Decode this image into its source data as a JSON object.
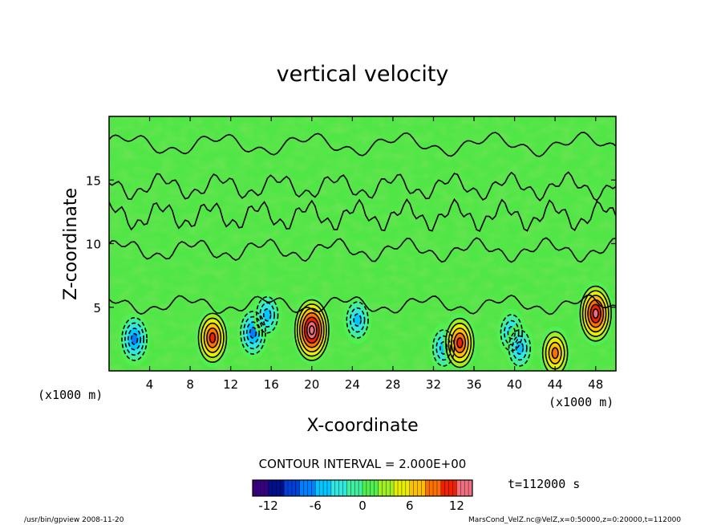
{
  "chart_data": {
    "type": "heatmap",
    "title": "vertical velocity",
    "xlabel": "X-coordinate",
    "ylabel": "Z-coordinate",
    "x_unit_label": "(x1000 m)",
    "x_unit_label_right": "(x1000 m)",
    "xlim": [
      0,
      50
    ],
    "ylim": [
      0,
      20
    ],
    "x_ticks": [
      "4",
      "8",
      "12",
      "16",
      "20",
      "24",
      "28",
      "32",
      "36",
      "40",
      "44",
      "48"
    ],
    "y_ticks": [
      "5",
      "10",
      "15"
    ],
    "contour_interval_text": "CONTOUR INTERVAL = 2.000E+00",
    "time_text": "t=112000 s",
    "colorbar": {
      "min": -14,
      "max": 14,
      "tick_labels": [
        "-12",
        "-6",
        "0",
        "6",
        "12"
      ],
      "colors": [
        "#3a0080",
        "#00108c",
        "#0040d8",
        "#0080ff",
        "#00c8ff",
        "#30e8e0",
        "#40f0a0",
        "#50f050",
        "#a0f020",
        "#e8f000",
        "#ffc000",
        "#ff7000",
        "#f02000",
        "#f07080"
      ]
    },
    "background_value": 0,
    "cells": [
      {
        "x": 2.5,
        "z": 2.5,
        "value": -8
      },
      {
        "x": 10.2,
        "z": 2.6,
        "value": 10
      },
      {
        "x": 14.2,
        "z": 3.0,
        "value": -8
      },
      {
        "x": 15.6,
        "z": 4.4,
        "value": -6
      },
      {
        "x": 20.0,
        "z": 3.2,
        "value": 14
      },
      {
        "x": 24.5,
        "z": 4.0,
        "value": -6
      },
      {
        "x": 33.0,
        "z": 1.8,
        "value": -6
      },
      {
        "x": 34.6,
        "z": 2.2,
        "value": 10
      },
      {
        "x": 39.7,
        "z": 3.0,
        "value": -6
      },
      {
        "x": 40.5,
        "z": 1.8,
        "value": -6
      },
      {
        "x": 44.0,
        "z": 1.4,
        "value": 8
      },
      {
        "x": 48.0,
        "z": 4.5,
        "value": 12
      }
    ]
  },
  "footer": {
    "left": "/usr/bin/gpview   2008-11-20",
    "right": "MarsCond_VelZ.nc@VelZ,x=0:50000,z=0:20000,t=112000"
  }
}
